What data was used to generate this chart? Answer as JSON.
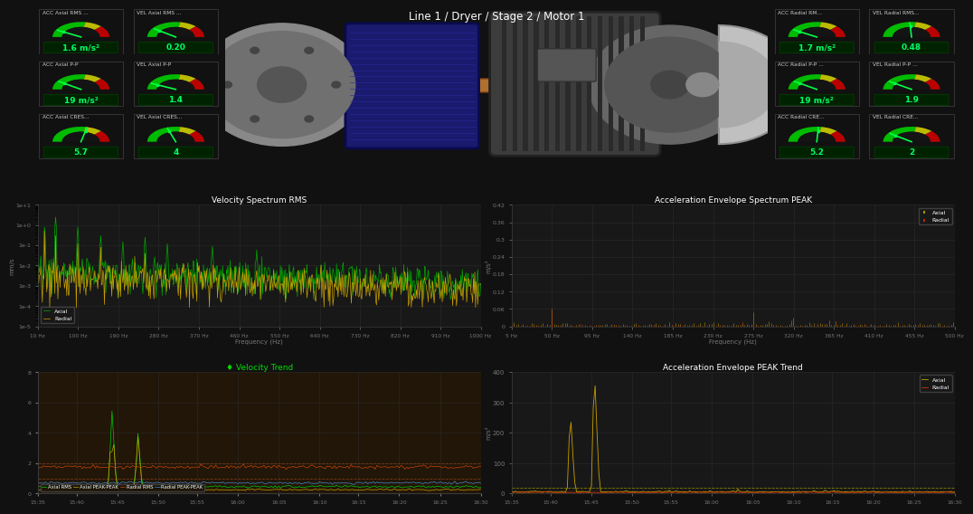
{
  "bg_color": "#111111",
  "panel_bg": "#1c1c1c",
  "panel_border": "#333333",
  "title": "Line 1 / Dryer / Stage 2 / Motor 1",
  "gauges_left": [
    {
      "title": "ACC Axial RMS ...",
      "value": "1.6 m/s²",
      "val_num": 0.16
    },
    {
      "title": "VEL Axial RMS ...",
      "value": "0.20",
      "val_num": 0.2
    },
    {
      "title": "ACC Axial P-P",
      "value": "19 m/s²",
      "val_num": 0.19
    },
    {
      "title": "VEL Axial P-P",
      "value": "1.4",
      "val_num": 0.14
    },
    {
      "title": "ACC Axial CRES...",
      "value": "5.7",
      "val_num": 0.57
    },
    {
      "title": "VEL Axial CRES...",
      "value": "4",
      "val_num": 0.4
    }
  ],
  "gauges_right": [
    {
      "title": "ACC Radial RM...",
      "value": "1.7 m/s²",
      "val_num": 0.17
    },
    {
      "title": "VEL Radial RMS...",
      "value": "0.48",
      "val_num": 0.48
    },
    {
      "title": "ACC Radial P-P ...",
      "value": "19 m/s²",
      "val_num": 0.19
    },
    {
      "title": "VEL Radial P-P ...",
      "value": "1.9",
      "val_num": 0.19
    },
    {
      "title": "ACC Radial CRE...",
      "value": "5.2",
      "val_num": 0.52
    },
    {
      "title": "VEL Radial CRE...",
      "value": "2",
      "val_num": 0.2
    }
  ],
  "vel_spectrum_title": "Velocity Spectrum RMS",
  "acc_spectrum_title": "Acceleration Envelope Spectrum PEAK",
  "vel_trend_title": "Velocity Trend",
  "acc_trend_title": "Acceleration Envelope PEAK Trend",
  "freq_x_vel": [
    10,
    100,
    190,
    280,
    370,
    460,
    550,
    640,
    730,
    820,
    910,
    1000
  ],
  "freq_x_acc": [
    5,
    50,
    95,
    140,
    185,
    230,
    275,
    320,
    365,
    410,
    455,
    500
  ],
  "time_labels": [
    "15:35",
    "15:40",
    "15:45",
    "15:50",
    "15:55",
    "16:00",
    "16:05",
    "16:10",
    "16:15",
    "16:20",
    "16:25",
    "16:30"
  ],
  "axial_color_vel": "#00aa00",
  "radial_color_vel": "#c8a000",
  "axial_color_acc": "#c8a000",
  "radial_color_acc": "#cc3300",
  "axial_color_trend": "#00cc00",
  "axial_pp_color": "#c8a000",
  "radial_rms_color": "#cc4400",
  "radial_pp_color": "#4488cc"
}
